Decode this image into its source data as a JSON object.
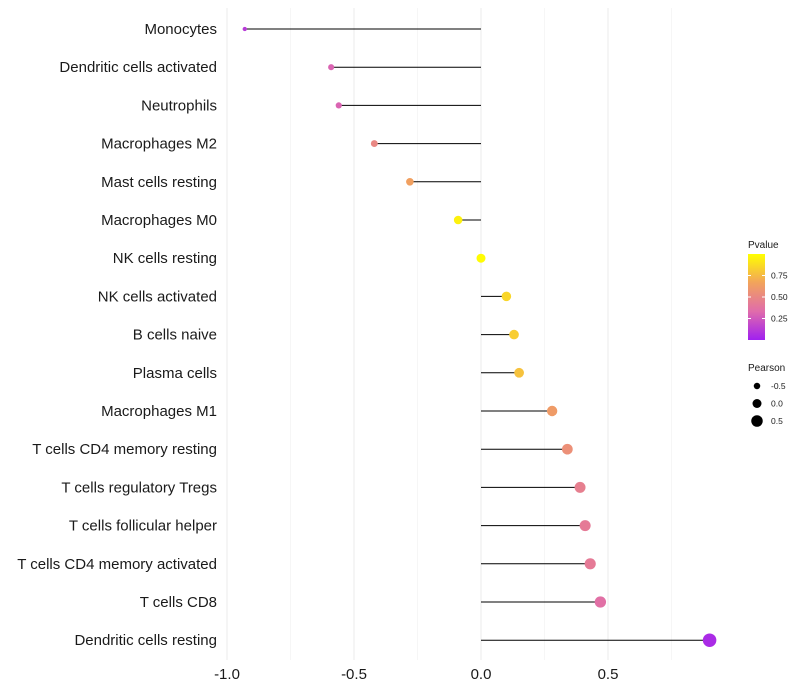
{
  "chart_data": {
    "type": "lollipop",
    "title": "",
    "xlabel": "",
    "ylabel": "",
    "xlim": [
      -1.0,
      0.92
    ],
    "x_ticks": [
      -1.0,
      -0.5,
      0.0,
      0.5
    ],
    "x_tick_labels": [
      "-1.0",
      "-0.5",
      "0.0",
      "0.5"
    ],
    "grid": true,
    "categories": [
      "Monocytes",
      "Dendritic cells activated",
      "Neutrophils",
      "Macrophages M2",
      "Mast cells resting",
      "Macrophages M0",
      "NK cells resting",
      "NK cells activated",
      "B cells naive",
      "Plasma cells",
      "Macrophages M1",
      "T cells CD4 memory resting",
      "T cells regulatory  Tregs ",
      "T cells follicular helper",
      "T cells CD4 memory activated",
      "T cells CD8",
      "Dendritic cells resting"
    ],
    "pearson": [
      -0.93,
      -0.59,
      -0.56,
      -0.42,
      -0.28,
      -0.09,
      0.0,
      0.1,
      0.13,
      0.15,
      0.28,
      0.34,
      0.39,
      0.41,
      0.43,
      0.47,
      0.9
    ],
    "pvalue": [
      0.12,
      0.3,
      0.3,
      0.5,
      0.65,
      0.95,
      0.99,
      0.85,
      0.82,
      0.78,
      0.62,
      0.55,
      0.45,
      0.42,
      0.42,
      0.36,
      0.05
    ],
    "legends": {
      "color": {
        "title": "Pvalue",
        "ticks": [
          0.25,
          0.5,
          0.75
        ],
        "tick_labels": [
          "0.25",
          "0.50",
          "0.75"
        ],
        "range": [
          0.0,
          1.0
        ],
        "colors": [
          "#a020f0",
          "#e06cab",
          "#f2a35c",
          "#ffff00"
        ]
      },
      "size": {
        "title": "Pearson",
        "values": [
          -0.5,
          0.0,
          0.5
        ],
        "labels": [
          "-0.5",
          "0.0",
          "0.5"
        ]
      },
      "position": "right"
    }
  }
}
